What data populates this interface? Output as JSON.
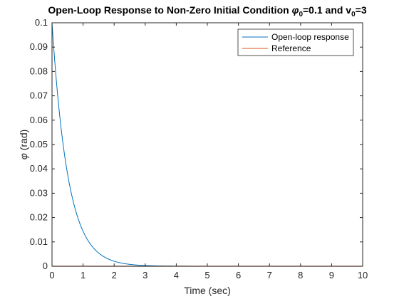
{
  "chart_data": {
    "type": "line",
    "title_parts": {
      "prefix": "Open-Loop Response to Non-Zero Initial Condition ",
      "phi": "φ",
      "phi_sub": "0",
      "middle": "=0.1 and v",
      "v_sub": "0",
      "suffix": "=3"
    },
    "xlabel": "Time (sec)",
    "ylabel_symbol": "φ",
    "ylabel_unit": " (rad)",
    "xlim": [
      0,
      10
    ],
    "ylim": [
      0,
      0.1
    ],
    "xticks": [
      0,
      1,
      2,
      3,
      4,
      5,
      6,
      7,
      8,
      9,
      10
    ],
    "yticks": [
      0,
      0.01,
      0.02,
      0.03,
      0.04,
      0.05,
      0.06,
      0.07,
      0.08,
      0.09,
      0.1
    ],
    "grid": false,
    "legend_position": "top-right",
    "series": [
      {
        "name": "Open-loop response",
        "color": "#0072BD",
        "x": [
          0,
          0.1,
          0.2,
          0.3,
          0.4,
          0.5,
          0.6,
          0.7,
          0.8,
          0.9,
          1.0,
          1.1,
          1.2,
          1.3,
          1.4,
          1.5,
          1.6,
          1.7,
          1.8,
          1.9,
          2.0,
          2.2,
          2.4,
          2.6,
          2.8,
          3.0,
          4,
          5,
          6,
          7,
          8,
          9,
          10
        ],
        "y": [
          0.1,
          0.0824,
          0.0679,
          0.056,
          0.0461,
          0.038,
          0.0313,
          0.0258,
          0.0213,
          0.0175,
          0.0145,
          0.0119,
          0.0098,
          0.0081,
          0.0067,
          0.0055,
          0.0045,
          0.0037,
          0.0031,
          0.0025,
          0.0021,
          0.0014,
          0.001,
          0.0007,
          0.0004,
          0.0003,
          0.0001,
          0,
          0,
          0,
          0,
          0,
          0
        ]
      },
      {
        "name": "Reference",
        "color": "#D95319",
        "x": [
          0,
          10
        ],
        "y": [
          0,
          0
        ]
      }
    ]
  }
}
